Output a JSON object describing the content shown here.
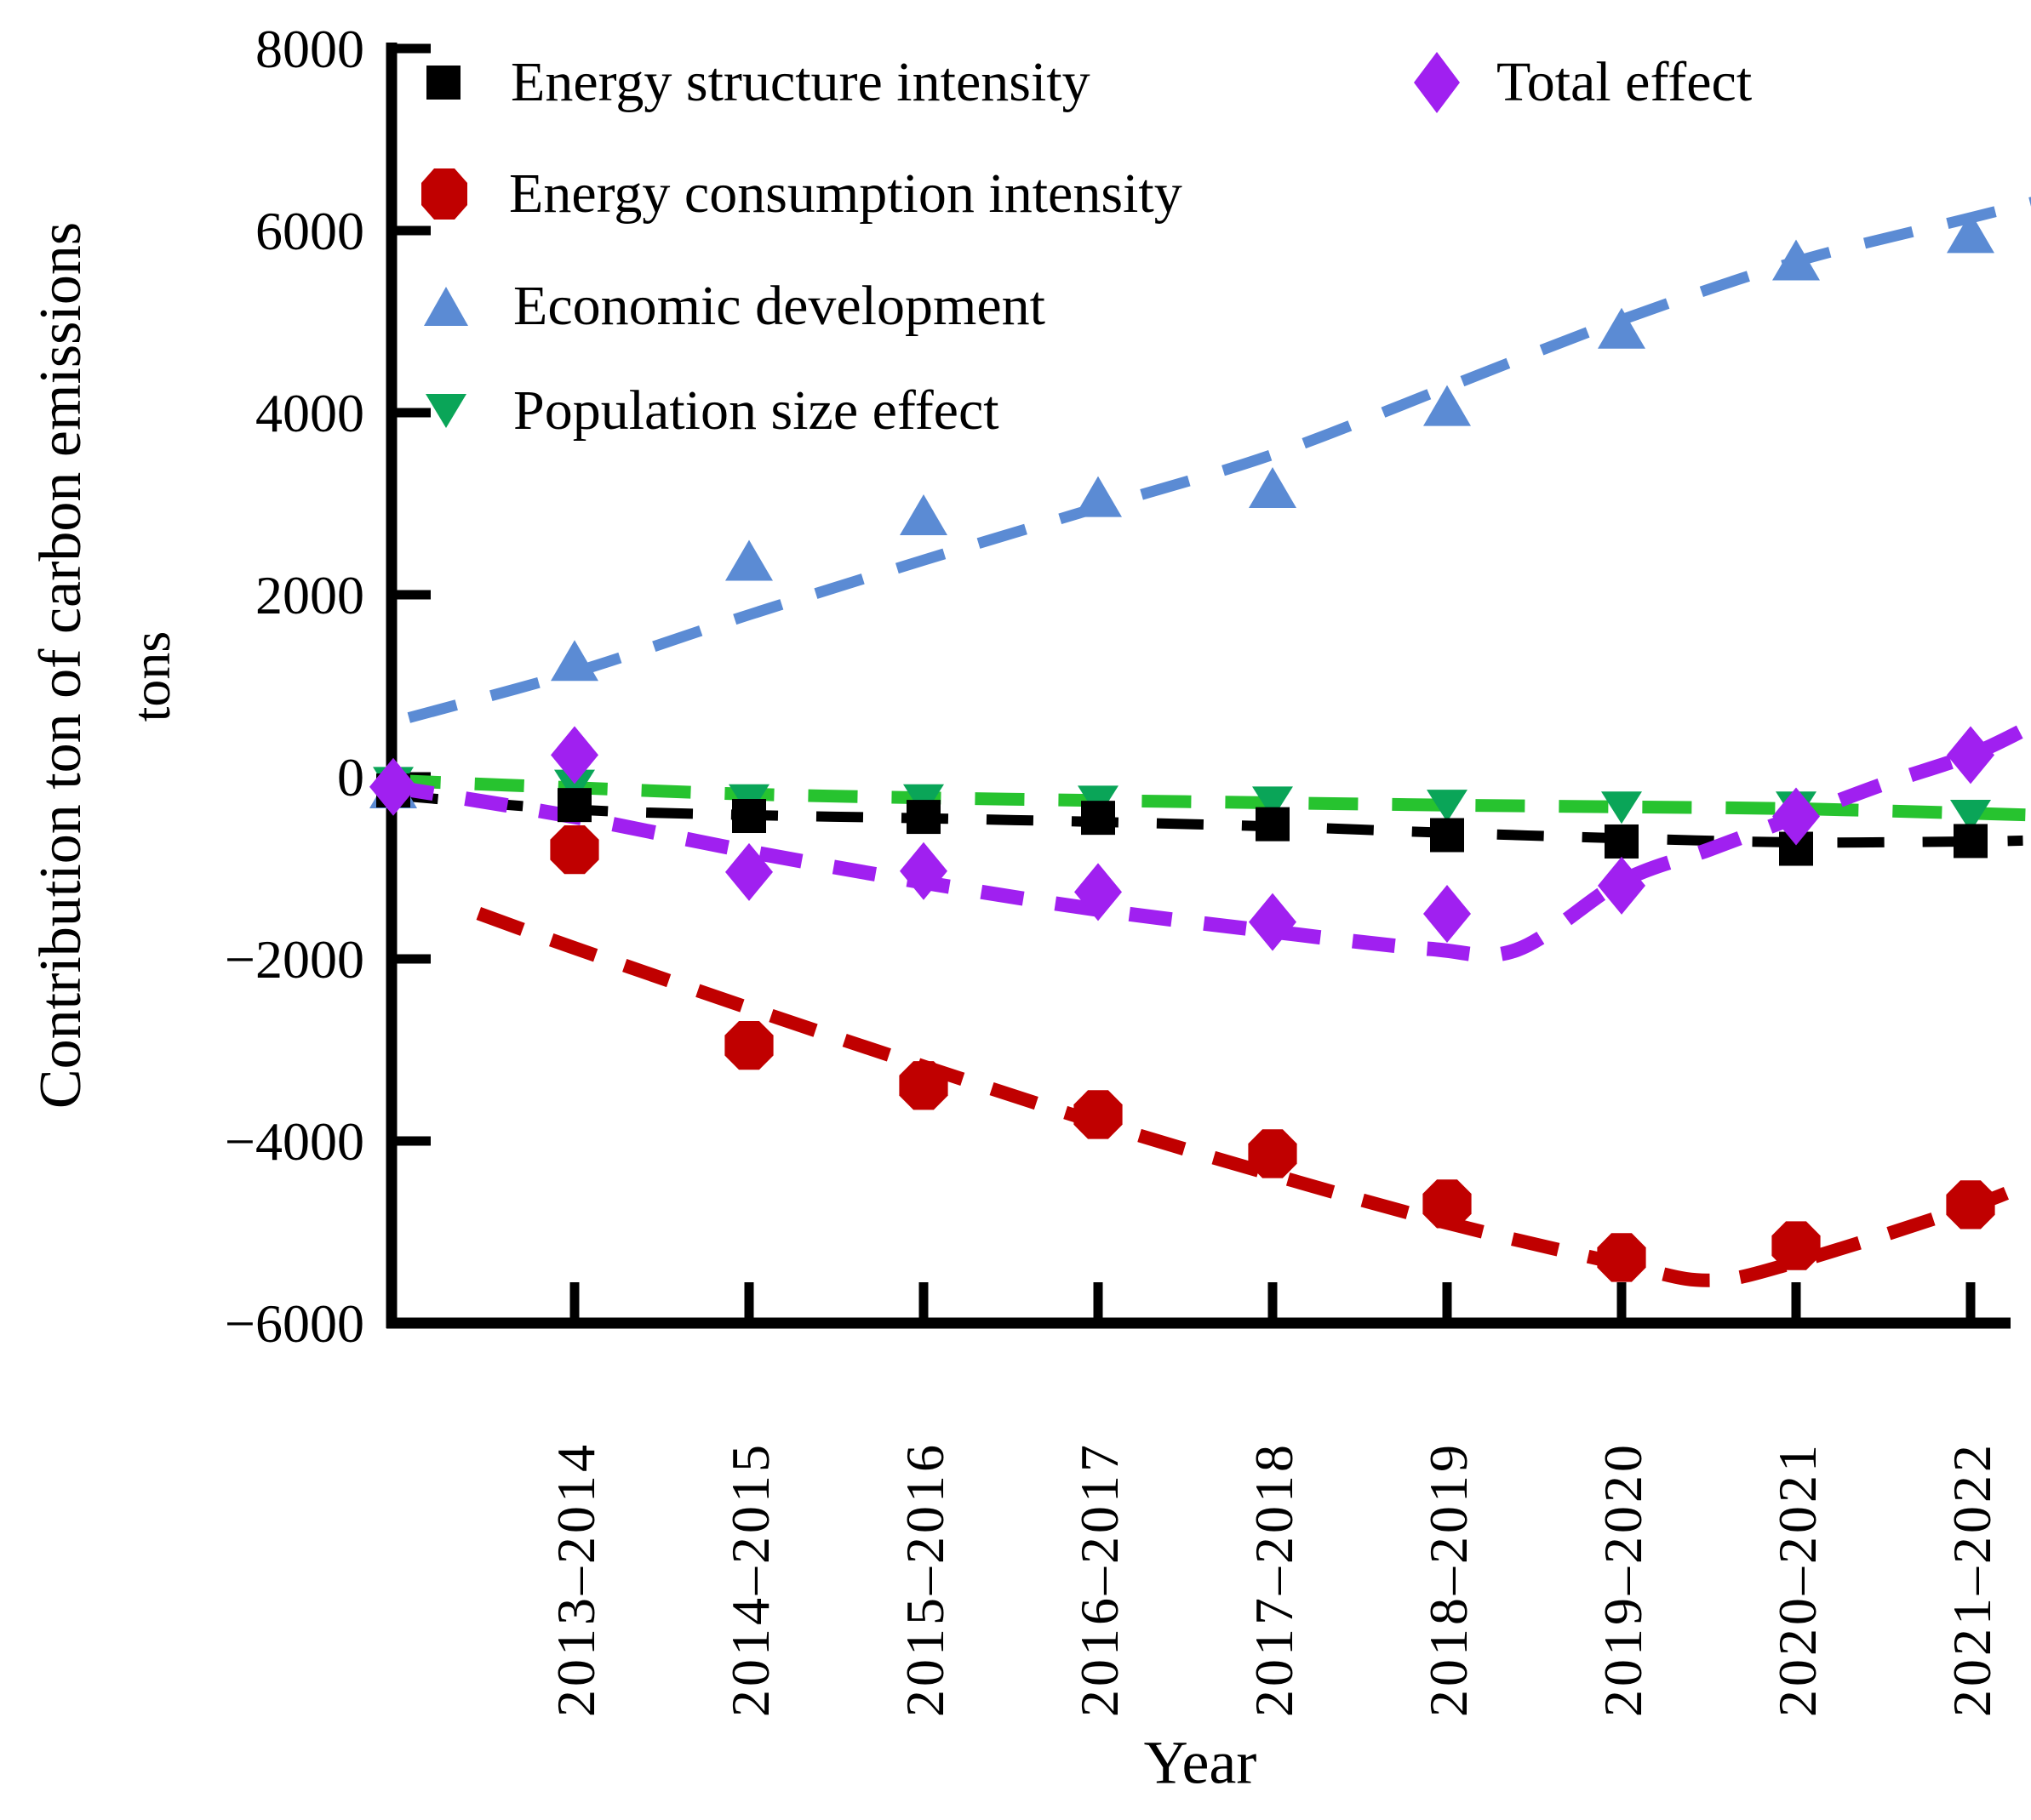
{
  "labels": {
    "y_axis": "Contribution ton of carbon emissions",
    "y_unit": "tons",
    "x_axis": "Year"
  },
  "chart_data": {
    "type": "scatter",
    "title": "",
    "xlabel": "Year",
    "ylabel": "Contribution ton of carbon emissions (tons)",
    "ylim": [
      -6000,
      8000
    ],
    "yticks": [
      8000,
      6000,
      4000,
      2000,
      0,
      -2000,
      -4000,
      -6000
    ],
    "grid": false,
    "legend_position": "top-left inside plot, two columns, no frame",
    "categories": [
      "2013–2014",
      "2014–2015",
      "2015–2016",
      "2016–2017",
      "2017–2018",
      "2018–2019",
      "2019–2020",
      "2020–2021",
      "2021–2022"
    ],
    "baseline_anchor_note": "overlapped marker cluster sitting on the y-axis at about 0, before the first tick",
    "series": [
      {
        "name": "Energy structure intensity",
        "marker": "square",
        "color": "#000000",
        "line_width": 12,
        "dash": "55 45",
        "anchor": -150,
        "values": [
          -310,
          -430,
          -440,
          -450,
          -520,
          -640,
          -710,
          -790,
          -705
        ],
        "trend": [
          [
            -1.05,
            -200
          ],
          [
            0,
            -360
          ],
          [
            1,
            -420
          ],
          [
            2,
            -455
          ],
          [
            3,
            -495
          ],
          [
            4,
            -545
          ],
          [
            5,
            -615
          ],
          [
            6,
            -675
          ],
          [
            7,
            -720
          ],
          [
            8,
            -710
          ],
          [
            8.3,
            -700
          ]
        ]
      },
      {
        "name": "Energy consumption intensity",
        "marker": "octagon",
        "color": "#C00000",
        "line_width": 16,
        "dash": "55 36",
        "anchor": null,
        "values": [
          -800,
          -2950,
          -3390,
          -3710,
          -4140,
          -4690,
          -5280,
          -5150,
          -4700
        ],
        "trend": [
          [
            -0.55,
            -1500
          ],
          [
            0,
            -1880
          ],
          [
            1,
            -2540
          ],
          [
            2,
            -3180
          ],
          [
            3,
            -3800
          ],
          [
            4,
            -4370
          ],
          [
            5,
            -4900
          ],
          [
            6,
            -5350
          ],
          [
            6.5,
            -5530
          ],
          [
            7,
            -5330
          ],
          [
            8,
            -4720
          ],
          [
            8.35,
            -4450
          ]
        ]
      },
      {
        "name": "Economic development",
        "marker": "triangle-up",
        "color": "#5B8BD4",
        "line_width": 13,
        "dash": "58 42",
        "anchor": -150,
        "values": [
          1250,
          2350,
          2850,
          3050,
          3150,
          4050,
          4900,
          5650,
          5950
        ],
        "trend": [
          [
            -0.95,
            650
          ],
          [
            0,
            1150
          ],
          [
            1,
            1780
          ],
          [
            2,
            2380
          ],
          [
            3,
            2960
          ],
          [
            4,
            3540
          ],
          [
            5,
            4280
          ],
          [
            6,
            5020
          ],
          [
            7,
            5660
          ],
          [
            8,
            6140
          ],
          [
            8.37,
            6320
          ]
        ]
      },
      {
        "name": "Population size effect",
        "marker": "triangle-down",
        "color": "#0AA558",
        "line_color": "#27C32F",
        "line_width": 15,
        "dash": "58 40",
        "anchor": -60,
        "values": [
          -90,
          -250,
          -250,
          -265,
          -275,
          -310,
          -330,
          -330,
          -420
        ],
        "trend": [
          [
            -1.05,
            -40
          ],
          [
            0,
            -120
          ],
          [
            1,
            -190
          ],
          [
            2,
            -230
          ],
          [
            3,
            -260
          ],
          [
            4,
            -285
          ],
          [
            5,
            -310
          ],
          [
            6,
            -330
          ],
          [
            7,
            -350
          ],
          [
            8,
            -400
          ],
          [
            8.35,
            -420
          ]
        ]
      },
      {
        "name": "Total effect",
        "marker": "diamond",
        "color": "#A020F0",
        "line_width": 17,
        "dash": "50 38",
        "anchor": -110,
        "values": [
          240,
          -1045,
          -1035,
          -1265,
          -1595,
          -1505,
          -1195,
          -435,
          240
        ],
        "trend": [
          [
            -1.05,
            -110
          ],
          [
            0,
            -440
          ],
          [
            1,
            -820
          ],
          [
            2,
            -1160
          ],
          [
            3,
            -1460
          ],
          [
            4,
            -1700
          ],
          [
            4.9,
            -1890
          ],
          [
            5.4,
            -1900
          ],
          [
            6,
            -1150
          ],
          [
            6.5,
            -800
          ],
          [
            7,
            -440
          ],
          [
            7.5,
            -80
          ],
          [
            8,
            240
          ],
          [
            8.35,
            560
          ]
        ]
      }
    ]
  }
}
